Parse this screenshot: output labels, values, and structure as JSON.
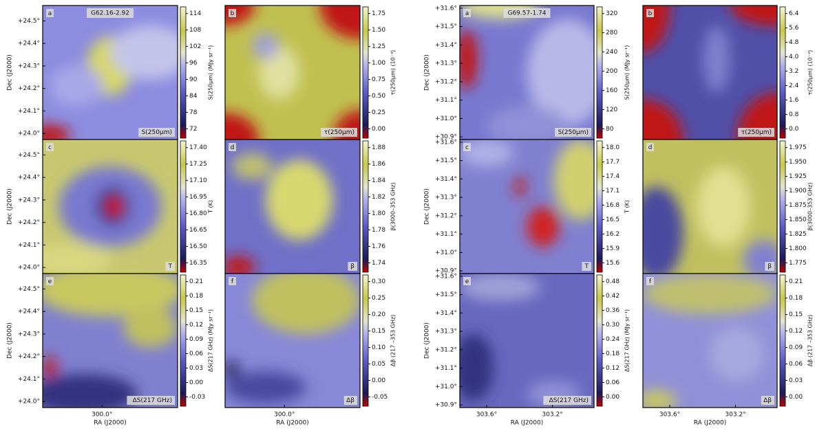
{
  "figures": [
    {
      "field": "G62.16-2.92",
      "ylabel": "Dec (J2000)",
      "xlabel": "RA (J2000)",
      "yticks": [
        "+24.5°",
        "+24.4°",
        "+24.3°",
        "+24.2°",
        "+24.1°",
        "+24.0°"
      ],
      "xticks": [
        "300.0°"
      ],
      "panels": [
        {
          "letter": "a",
          "label": "S(250μm)",
          "colorbar_label": "S(250μm) (MJy sr⁻¹)",
          "colorbar_ticks": [
            "114",
            "108",
            "102",
            "96",
            "90",
            "84",
            "78",
            "72"
          ]
        },
        {
          "letter": "b",
          "label": "τ(250μm)",
          "colorbar_label": "τ(250μm) (10⁻³)",
          "colorbar_ticks": [
            "1.75",
            "1.50",
            "1.25",
            "1.00",
            "0.75",
            "0.50",
            "0.25",
            "0.00"
          ]
        },
        {
          "letter": "c",
          "label": "T",
          "colorbar_label": "T (K)",
          "colorbar_ticks": [
            "17.40",
            "17.25",
            "17.10",
            "16.95",
            "16.80",
            "16.65",
            "16.50",
            "16.35"
          ]
        },
        {
          "letter": "d",
          "label": "β",
          "colorbar_label": "β(3000–353 GHz)",
          "colorbar_ticks": [
            "1.88",
            "1.86",
            "1.84",
            "1.82",
            "1.80",
            "1.78",
            "1.76",
            "1.74"
          ]
        },
        {
          "letter": "e",
          "label": "ΔS(217 GHz)",
          "colorbar_label": "ΔS(217 GHz) (MJy sr⁻¹)",
          "colorbar_ticks": [
            "0.21",
            "0.18",
            "0.15",
            "0.12",
            "0.09",
            "0.06",
            "0.03",
            "0.00",
            "-0.03"
          ]
        },
        {
          "letter": "f",
          "label": "Δβ",
          "colorbar_label": "Δβ (217 –353 GHz)",
          "colorbar_ticks": [
            "0.30",
            "0.25",
            "0.20",
            "0.15",
            "0.10",
            "0.05",
            "0.00",
            "-0.05"
          ]
        }
      ]
    },
    {
      "field": "G69.57-1.74",
      "ylabel": "Dec (J2000)",
      "xlabel": "RA (J2000)",
      "yticks": [
        "+31.6°",
        "+31.5°",
        "+31.4°",
        "+31.3°",
        "+31.2°",
        "+31.1°",
        "+31.0°",
        "+30.9°"
      ],
      "xticks": [
        "303.6°",
        "303.2°"
      ],
      "panels": [
        {
          "letter": "a",
          "label": "S(250μm)",
          "colorbar_label": "S(250μm) (MJy sr⁻¹)",
          "colorbar_ticks": [
            "320",
            "280",
            "240",
            "200",
            "160",
            "120",
            "80"
          ]
        },
        {
          "letter": "b",
          "label": "τ(250μm)",
          "colorbar_label": "τ(250μm) (10⁻³)",
          "colorbar_ticks": [
            "6.4",
            "5.6",
            "4.8",
            "4.0",
            "3.2",
            "2.4",
            "1.6",
            "0.8",
            "0.0"
          ]
        },
        {
          "letter": "c",
          "label": "T",
          "colorbar_label": "T (K)",
          "colorbar_ticks": [
            "18.0",
            "17.7",
            "17.4",
            "17.1",
            "16.8",
            "16.5",
            "16.2",
            "15.9",
            "15.6"
          ]
        },
        {
          "letter": "d",
          "label": "β",
          "colorbar_label": "β(3000–353 GHz)",
          "colorbar_ticks": [
            "1.975",
            "1.950",
            "1.925",
            "1.900",
            "1.875",
            "1.850",
            "1.825",
            "1.800",
            "1.775"
          ]
        },
        {
          "letter": "e",
          "label": "ΔS(217 GHz)",
          "colorbar_label": "ΔS(217 GHz) (MJy sr⁻¹)",
          "colorbar_ticks": [
            "0.48",
            "0.42",
            "0.36",
            "0.30",
            "0.24",
            "0.18",
            "0.12",
            "0.06",
            "0.00"
          ]
        },
        {
          "letter": "f",
          "label": "Δβ",
          "colorbar_label": "Δβ (217 –353 GHz)",
          "colorbar_ticks": [
            "0.21",
            "0.18",
            "0.15",
            "0.12",
            "0.09",
            "0.06",
            "0.03",
            "0.00"
          ]
        }
      ]
    }
  ]
}
